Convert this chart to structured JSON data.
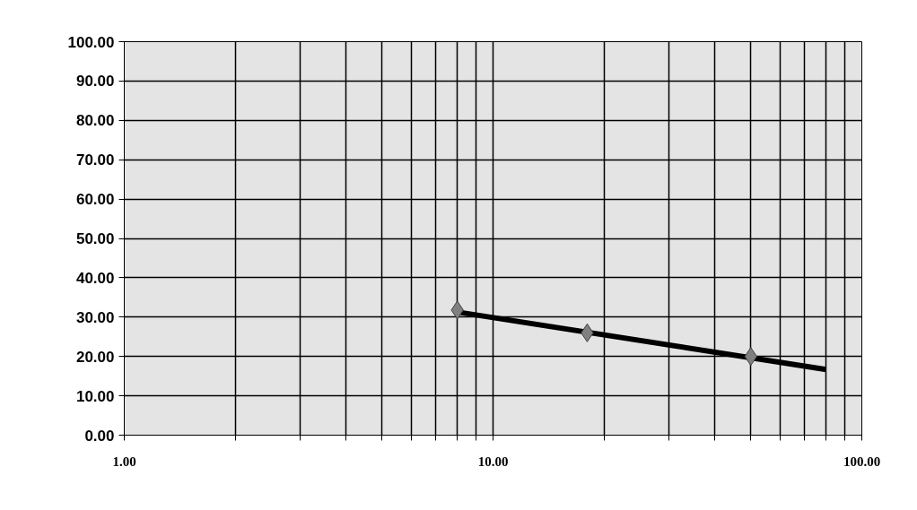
{
  "chart_data": {
    "type": "line",
    "log": "x",
    "grid": true,
    "xlim": [
      1,
      100
    ],
    "ylim": [
      0,
      100
    ],
    "xticks": [
      {
        "value": 1,
        "label": "1.00"
      },
      {
        "value": 2,
        "label": null
      },
      {
        "value": 3,
        "label": null
      },
      {
        "value": 4,
        "label": null
      },
      {
        "value": 5,
        "label": null
      },
      {
        "value": 6,
        "label": null
      },
      {
        "value": 7,
        "label": null
      },
      {
        "value": 8,
        "label": null
      },
      {
        "value": 9,
        "label": null
      },
      {
        "value": 10,
        "label": "10.00"
      },
      {
        "value": 20,
        "label": null
      },
      {
        "value": 30,
        "label": null
      },
      {
        "value": 40,
        "label": null
      },
      {
        "value": 50,
        "label": null
      },
      {
        "value": 60,
        "label": null
      },
      {
        "value": 70,
        "label": null
      },
      {
        "value": 80,
        "label": null
      },
      {
        "value": 90,
        "label": null
      },
      {
        "value": 100,
        "label": "100.00"
      }
    ],
    "yticks": [
      {
        "value": 0,
        "label": "0.00"
      },
      {
        "value": 10,
        "label": "10.00"
      },
      {
        "value": 20,
        "label": "20.00"
      },
      {
        "value": 30,
        "label": "30.00"
      },
      {
        "value": 40,
        "label": "40.00"
      },
      {
        "value": 50,
        "label": "50.00"
      },
      {
        "value": 60,
        "label": "60.00"
      },
      {
        "value": 70,
        "label": "70.00"
      },
      {
        "value": 80,
        "label": "80.00"
      },
      {
        "value": 90,
        "label": "90.00"
      },
      {
        "value": 100,
        "label": "100.00"
      }
    ],
    "series": [
      {
        "type": "scatter",
        "marker": "diamond",
        "color": "#808080",
        "x": [
          8,
          18,
          50
        ],
        "values": [
          31.8,
          26,
          20
        ]
      },
      {
        "line_style": "solid",
        "marker": "none",
        "color": "#000000",
        "x": [
          8,
          80
        ],
        "values": [
          31.3,
          16.7
        ]
      }
    ]
  }
}
